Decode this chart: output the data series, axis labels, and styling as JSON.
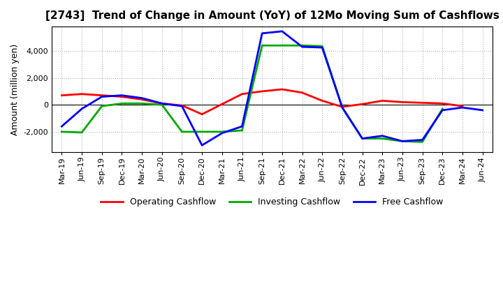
{
  "title": "[2743]  Trend of Change in Amount (YoY) of 12Mo Moving Sum of Cashflows",
  "ylabel": "Amount (million yen)",
  "x_labels": [
    "Mar-19",
    "Jun-19",
    "Sep-19",
    "Dec-19",
    "Mar-20",
    "Jun-20",
    "Sep-20",
    "Dec-20",
    "Mar-21",
    "Jun-21",
    "Sep-21",
    "Dec-21",
    "Mar-22",
    "Jun-22",
    "Sep-22",
    "Dec-22",
    "Mar-23",
    "Jun-23",
    "Sep-23",
    "Dec-23",
    "Mar-24",
    "Jun-24"
  ],
  "operating": [
    700,
    800,
    700,
    600,
    400,
    100,
    -50,
    -700,
    50,
    800,
    1000,
    1150,
    900,
    300,
    -150,
    50,
    300,
    200,
    150,
    100,
    -100,
    null
  ],
  "investing": [
    -2000,
    -2050,
    -100,
    100,
    100,
    0,
    -2000,
    -2000,
    -2000,
    -1900,
    4400,
    4400,
    4400,
    4350,
    -200,
    -2500,
    -2500,
    -2700,
    -2750,
    -300,
    null,
    null
  ],
  "free": [
    -1600,
    -300,
    600,
    700,
    500,
    100,
    -100,
    -3000,
    -2100,
    -1600,
    5300,
    5450,
    4300,
    4250,
    -200,
    -2500,
    -2300,
    -2700,
    -2600,
    -400,
    -200,
    -400
  ],
  "ylim": [
    -3500,
    5800
  ],
  "yticks": [
    -2000,
    0,
    2000,
    4000
  ],
  "colors": {
    "operating": "#ff0000",
    "investing": "#00aa00",
    "free": "#0000ff"
  },
  "legend_labels": [
    "Operating Cashflow",
    "Investing Cashflow",
    "Free Cashflow"
  ],
  "background_color": "#ffffff",
  "grid_color": "#888888",
  "title_fontsize": 11,
  "ylabel_fontsize": 9,
  "tick_fontsize": 8,
  "legend_fontsize": 9,
  "linewidth": 2.0
}
